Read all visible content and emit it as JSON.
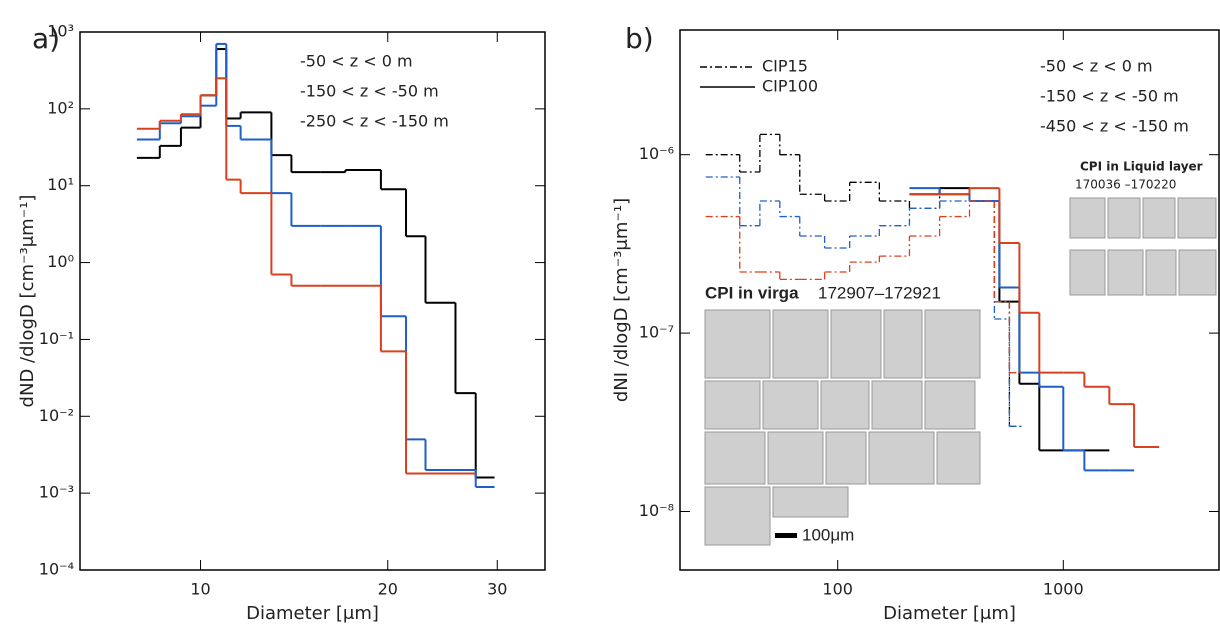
{
  "chart_data": [
    {
      "type": "step",
      "panel_label": "a)",
      "xlabel": "Diameter [μm]",
      "ylabel": "dND /dlogD [cm⁻³μm⁻¹]",
      "xscale": "log",
      "yscale": "log",
      "xlim": [
        6.4,
        35.8
      ],
      "ylim": [
        0.0001,
        1000
      ],
      "xticks": [
        10,
        20,
        30
      ],
      "yticks": [
        {
          "value": 0.0001,
          "label": "10⁻⁴"
        },
        {
          "value": 0.001,
          "label": "10⁻³"
        },
        {
          "value": 0.01,
          "label": "10⁻²"
        },
        {
          "value": 0.1,
          "label": "10⁻¹"
        },
        {
          "value": 1,
          "label": "10⁰"
        },
        {
          "value": 10,
          "label": "10¹"
        },
        {
          "value": 100,
          "label": "10²"
        },
        {
          "value": 1000,
          "label": "10³"
        }
      ],
      "legend_position": "upper right",
      "series": [
        {
          "name": "-50 < z < 0 m",
          "color": "#000000",
          "segments": [
            {
              "bins": [
                7.9,
                8.6,
                9.3,
                10,
                10.6,
                11.0,
                11.6,
                13.0,
                14.0,
                15.6,
                17.1,
                19.5,
                21.4,
                23.0,
                25.7,
                27.7,
                29.7
              ],
              "values": [
                23,
                33,
                57,
                150,
                600,
                75,
                90,
                25,
                15,
                15,
                16,
                9,
                2.2,
                0.3,
                0.02,
                0.0016
              ]
            }
          ]
        },
        {
          "name": "-150 < z < -50 m",
          "color": "#1f5fc8",
          "segments": [
            {
              "bins": [
                7.9,
                8.6,
                9.3,
                10,
                10.6,
                11.0,
                11.6,
                13.0,
                14.0,
                15.6,
                17.1,
                19.5,
                21.4,
                23.0,
                25.7,
                27.7,
                29.7
              ],
              "values": [
                40,
                65,
                80,
                110,
                700,
                60,
                40,
                8,
                3,
                3,
                3,
                0.2,
                0.005,
                0.002,
                0.002,
                0.0012
              ]
            }
          ]
        },
        {
          "name": "-250 < z < -150 m",
          "color": "#d9411e",
          "segments": [
            {
              "bins": [
                7.9,
                8.6,
                9.3,
                10,
                10.6,
                11.0,
                11.6,
                13.0,
                14.0,
                15.6,
                17.1,
                19.5,
                21.4,
                23.0,
                25.7,
                27.7,
                29.7
              ],
              "values": [
                55,
                70,
                85,
                150,
                250,
                12,
                8,
                0.7,
                0.5,
                0.5,
                0.5,
                0.07,
                0.0018,
                0.0018,
                0.0018,
                null
              ]
            }
          ]
        }
      ]
    },
    {
      "type": "step",
      "panel_label": "b)",
      "xlabel": "Diameter [μm]",
      "ylabel": "dNI /dlogD [cm⁻³μm⁻¹]",
      "xscale": "log",
      "yscale": "log",
      "xlim": [
        20,
        4900
      ],
      "ylim": [
        4.7e-09,
        5e-06
      ],
      "xticks": [
        100,
        1000
      ],
      "yticks": [
        {
          "value": 1e-08,
          "label": "10⁻⁸"
        },
        {
          "value": 1e-07,
          "label": "10⁻⁷"
        },
        {
          "value": 1e-06,
          "label": "10⁻⁶"
        }
      ],
      "legend_position": "upper right",
      "styles": [
        {
          "name": "CIP15",
          "dash": "7 3 2 3"
        },
        {
          "name": "CIP100",
          "dash": null
        }
      ],
      "series": [
        {
          "name": "-50 < z < 0 m",
          "color": "#000000",
          "segments": [
            {
              "style": 0,
              "bins": [
                26,
                36.8,
                45.2,
                55.4,
                67.9,
                87.5,
                113,
                153,
                208,
                283,
                384,
                495,
                577,
                672
              ],
              "values": [
                1e-06,
                8e-07,
                1.3e-06,
                1e-06,
                6e-07,
                5.5e-07,
                7e-07,
                5.5e-07,
                5e-07,
                6e-07,
                5.5e-07,
                1.5e-07,
                3e-08
              ]
            },
            {
              "style": 1,
              "bins": [
                208,
                283,
                384,
                521,
                639,
                783,
                1000,
                1240,
                1600,
                2060,
                2660
              ],
              "values": [
                6e-07,
                6.5e-07,
                5.5e-07,
                1.5e-07,
                5.2e-08,
                2.2e-08,
                2.2e-08,
                2.2e-08,
                null,
                null
              ]
            }
          ]
        },
        {
          "name": "-150 < z < -50 m",
          "color": "#1f5fc8",
          "segments": [
            {
              "style": 0,
              "bins": [
                26,
                36.8,
                45.2,
                55.4,
                67.9,
                87.5,
                113,
                153,
                208,
                283,
                384,
                495,
                577,
                672
              ],
              "values": [
                7.5e-07,
                4e-07,
                5.5e-07,
                4.5e-07,
                3.5e-07,
                3e-07,
                3.5e-07,
                4e-07,
                5e-07,
                5.5e-07,
                5.5e-07,
                1.2e-07,
                3e-08
              ]
            },
            {
              "style": 1,
              "bins": [
                208,
                283,
                384,
                521,
                639,
                783,
                1000,
                1240,
                1600,
                2060,
                2660
              ],
              "values": [
                6.5e-07,
                6e-07,
                5.5e-07,
                1.8e-07,
                6e-08,
                5e-08,
                2.2e-08,
                1.7e-08,
                1.7e-08,
                null
              ]
            }
          ]
        },
        {
          "name": "-450 < z < -150 m",
          "color": "#d9411e",
          "segments": [
            {
              "style": 0,
              "bins": [
                26,
                36.8,
                45.2,
                55.4,
                67.9,
                87.5,
                113,
                153,
                208,
                283,
                384,
                495,
                577,
                672
              ],
              "values": [
                4.5e-07,
                2.2e-07,
                2.2e-07,
                2e-07,
                2e-07,
                2.2e-07,
                2.5e-07,
                2.7e-07,
                3.5e-07,
                4.5e-07,
                5.5e-07,
                1.5e-07,
                6e-08
              ]
            },
            {
              "style": 1,
              "bins": [
                208,
                283,
                384,
                521,
                639,
                783,
                1000,
                1240,
                1600,
                2060,
                2660
              ],
              "values": [
                6e-07,
                6e-07,
                6.5e-07,
                3.2e-07,
                1.3e-07,
                6e-08,
                6e-08,
                5e-08,
                4e-08,
                2.3e-08
              ]
            }
          ]
        }
      ],
      "annotations": [
        "CPI in virga",
        "172907–172921",
        "100μm",
        "CPI in Liquid layer",
        "170036 –170220"
      ]
    }
  ]
}
